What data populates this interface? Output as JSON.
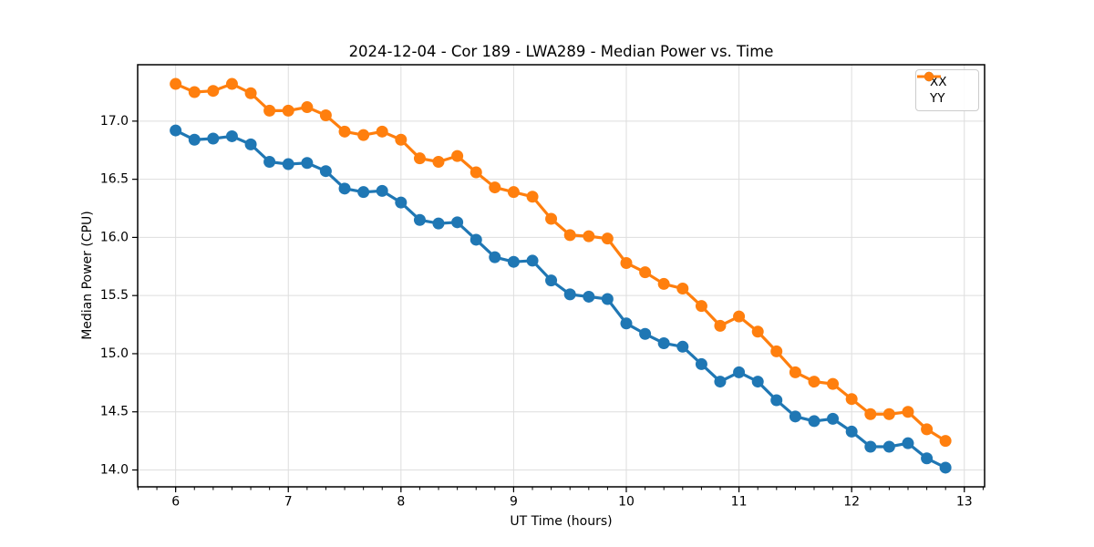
{
  "figure": {
    "background": "#ffffff"
  },
  "chart_data": {
    "type": "line",
    "title": "2024-12-04 - Cor 189 - LWA289 - Median Power vs. Time",
    "xlabel": "UT Time (hours)",
    "ylabel": "Median Power (CPU)",
    "xlim": [
      5.663,
      13.18
    ],
    "ylim": [
      13.855,
      17.485
    ],
    "xticks": [
      6,
      7,
      8,
      9,
      10,
      11,
      12,
      13
    ],
    "xticklabels": [
      "6",
      "7",
      "8",
      "9",
      "10",
      "11",
      "12",
      "13"
    ],
    "x_minor_step": 0.16667,
    "yticks": [
      14.0,
      14.5,
      15.0,
      15.5,
      16.0,
      16.5,
      17.0
    ],
    "yticklabels": [
      "14.0",
      "14.5",
      "15.0",
      "15.5",
      "16.0",
      "16.5",
      "17.0"
    ],
    "grid": true,
    "grid_color": "#dedede",
    "legend_position": "upper right",
    "marker": "o",
    "x": [
      6.0,
      6.167,
      6.333,
      6.5,
      6.667,
      6.833,
      7.0,
      7.167,
      7.333,
      7.5,
      7.667,
      7.833,
      8.0,
      8.167,
      8.333,
      8.5,
      8.667,
      8.833,
      9.0,
      9.167,
      9.333,
      9.5,
      9.667,
      9.833,
      10.0,
      10.167,
      10.333,
      10.5,
      10.667,
      10.833,
      11.0,
      11.167,
      11.333,
      11.5,
      11.667,
      11.833,
      12.0,
      12.167,
      12.333,
      12.5,
      12.667,
      12.833
    ],
    "series": [
      {
        "name": "XX",
        "color": "#1f77b4",
        "values": [
          16.92,
          16.84,
          16.85,
          16.87,
          16.8,
          16.65,
          16.63,
          16.64,
          16.57,
          16.42,
          16.39,
          16.4,
          16.3,
          16.15,
          16.12,
          16.13,
          15.98,
          15.83,
          15.79,
          15.8,
          15.63,
          15.51,
          15.49,
          15.47,
          15.26,
          15.17,
          15.09,
          15.06,
          14.91,
          14.76,
          14.84,
          14.76,
          14.6,
          14.46,
          14.42,
          14.44,
          14.33,
          14.2,
          14.2,
          14.23,
          14.1,
          14.02
        ]
      },
      {
        "name": "YY",
        "color": "#ff7f0e",
        "values": [
          17.32,
          17.25,
          17.26,
          17.32,
          17.24,
          17.09,
          17.09,
          17.12,
          17.05,
          16.91,
          16.88,
          16.91,
          16.84,
          16.68,
          16.65,
          16.7,
          16.56,
          16.43,
          16.39,
          16.35,
          16.16,
          16.02,
          16.01,
          15.99,
          15.78,
          15.7,
          15.6,
          15.56,
          15.41,
          15.24,
          15.32,
          15.19,
          15.02,
          14.84,
          14.76,
          14.74,
          14.61,
          14.48,
          14.48,
          14.5,
          14.35,
          14.25
        ]
      }
    ]
  }
}
